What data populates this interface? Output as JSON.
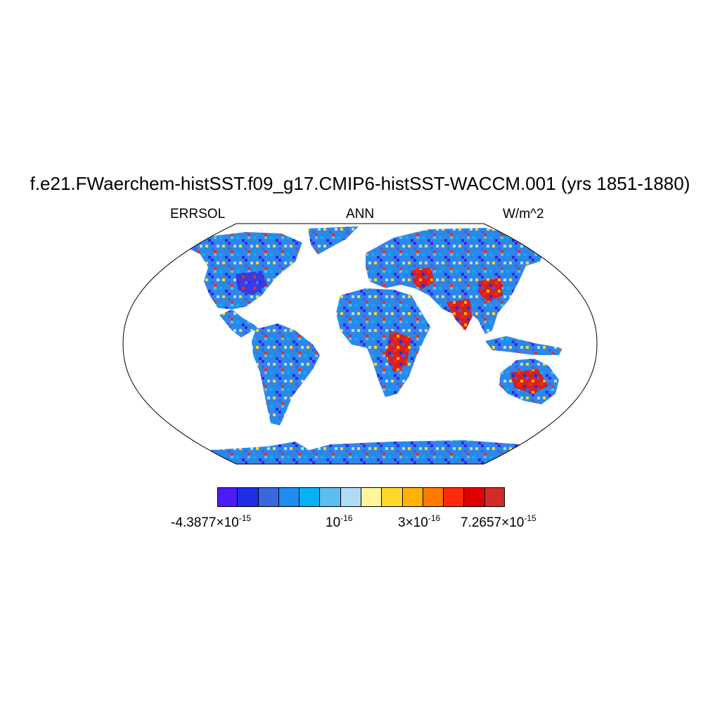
{
  "title": "f.e21.FWaerchem-histSST.f09_g17.CMIP6-histSST-WACCM.001 (yrs 1851-1880)",
  "subtitle_left": "ERRSOL",
  "subtitle_center": "ANN",
  "subtitle_right": "W/m^2",
  "colorbar": {
    "colors": [
      "#4b1cf5",
      "#1f2fe8",
      "#3a66e0",
      "#1e8cf0",
      "#05b1f5",
      "#5bbef0",
      "#afdcf5",
      "#fff59a",
      "#ffd92a",
      "#ffb200",
      "#ff7b00",
      "#ff2b0a",
      "#e00000",
      "#d32a2a"
    ],
    "labels": [
      {
        "mantissa": "-4.3877",
        "sep": "×",
        "base": "10",
        "exp": "-15"
      },
      {
        "mantissa": "",
        "sep": "",
        "base": "10",
        "exp": "-16"
      },
      {
        "mantissa": "3",
        "sep": "×",
        "base": "10",
        "exp": "-16"
      },
      {
        "mantissa": "7.2657",
        "sep": "×",
        "base": "10",
        "exp": "-15"
      }
    ]
  },
  "map": {
    "projection": "Robinson",
    "ocean_color": "#ffffff",
    "dominant_land_color": "#3a8fe8"
  }
}
